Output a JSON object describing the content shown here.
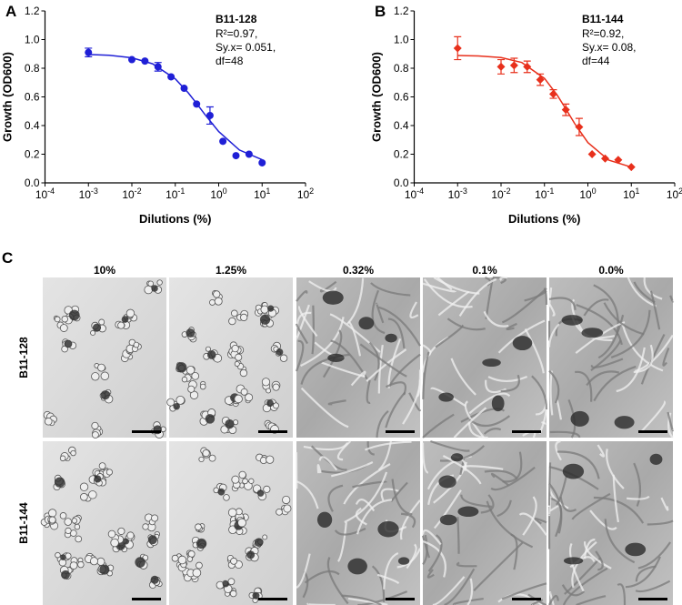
{
  "chart_data": [
    {
      "type": "scatter",
      "panel_label": "A",
      "title": "B11-128",
      "annotation_lines": [
        "R²=0.97,",
        "Sy.x= 0.051,",
        "df=48"
      ],
      "x_label": "Dilutions (%)",
      "y_label": "Growth (OD600)",
      "x_log": true,
      "xlim": [
        0.0001,
        100
      ],
      "xticks": [
        {
          "value": 0.0001,
          "label": "10",
          "exponent": "-4"
        },
        {
          "value": 0.001,
          "label": "10",
          "exponent": "-3"
        },
        {
          "value": 0.01,
          "label": "10",
          "exponent": "-2"
        },
        {
          "value": 0.1,
          "label": "10",
          "exponent": "-1"
        },
        {
          "value": 1,
          "label": "10",
          "exponent": "0"
        },
        {
          "value": 10,
          "label": "10",
          "exponent": "1"
        },
        {
          "value": 100,
          "label": "10",
          "exponent": "2"
        }
      ],
      "ylim": [
        0,
        1.2
      ],
      "yticks": [
        {
          "value": 0,
          "label": "0.0"
        },
        0.2,
        0.4,
        0.6,
        0.8,
        {
          "value": 1,
          "label": "1.0"
        },
        1.2
      ],
      "series": [
        {
          "color": "#1f1fd6",
          "marker": "circle",
          "x": [
            0.001,
            0.01,
            0.02,
            0.04,
            0.08,
            0.16,
            0.31,
            0.63,
            1.25,
            2.5,
            5,
            10
          ],
          "values": [
            0.91,
            0.86,
            0.85,
            0.81,
            0.74,
            0.66,
            0.55,
            0.47,
            0.29,
            0.19,
            0.2,
            0.14
          ],
          "errors": [
            0.03,
            null,
            null,
            0.03,
            null,
            null,
            null,
            0.06,
            null,
            null,
            null,
            null
          ]
        }
      ],
      "fit": {
        "x": [
          0.001,
          0.003,
          0.01,
          0.03,
          0.1,
          0.2,
          0.3,
          0.5,
          1,
          3,
          10
        ],
        "values": [
          0.896,
          0.89,
          0.873,
          0.831,
          0.726,
          0.628,
          0.56,
          0.471,
          0.358,
          0.229,
          0.161
        ]
      }
    },
    {
      "type": "scatter",
      "panel_label": "B",
      "title": "B11-144",
      "annotation_lines": [
        "R²=0.92,",
        "Sy.x= 0.08,",
        "df=44"
      ],
      "x_label": "Dilutions (%)",
      "y_label": "Growth (OD600)",
      "x_log": true,
      "xlim": [
        0.0001,
        100
      ],
      "xticks": [
        {
          "value": 0.0001,
          "label": "10",
          "exponent": "-4"
        },
        {
          "value": 0.001,
          "label": "10",
          "exponent": "-3"
        },
        {
          "value": 0.01,
          "label": "10",
          "exponent": "-2"
        },
        {
          "value": 0.1,
          "label": "10",
          "exponent": "-1"
        },
        {
          "value": 1,
          "label": "10",
          "exponent": "0"
        },
        {
          "value": 10,
          "label": "10",
          "exponent": "1"
        },
        {
          "value": 100,
          "label": "10",
          "exponent": "2"
        }
      ],
      "ylim": [
        0,
        1.2
      ],
      "yticks": [
        {
          "value": 0,
          "label": "0.0"
        },
        0.2,
        0.4,
        0.6,
        0.8,
        {
          "value": 1,
          "label": "1.0"
        },
        1.2
      ],
      "series": [
        {
          "color": "#e8301c",
          "marker": "diamond",
          "x": [
            0.001,
            0.01,
            0.02,
            0.04,
            0.08,
            0.16,
            0.31,
            0.63,
            1.25,
            2.5,
            5,
            10
          ],
          "values": [
            0.94,
            0.81,
            0.82,
            0.81,
            0.72,
            0.62,
            0.51,
            0.39,
            0.2,
            0.17,
            0.16,
            0.11
          ],
          "errors": [
            0.08,
            0.05,
            0.05,
            0.04,
            0.04,
            0.03,
            0.04,
            0.06,
            null,
            null,
            null,
            null
          ]
        }
      ],
      "fit": {
        "x": [
          0.001,
          0.003,
          0.01,
          0.03,
          0.1,
          0.2,
          0.3,
          0.5,
          1,
          3,
          10
        ],
        "values": [
          0.889,
          0.886,
          0.874,
          0.84,
          0.729,
          0.609,
          0.524,
          0.413,
          0.281,
          0.159,
          0.11
        ]
      }
    }
  ],
  "panel_c": {
    "panel_label": "C",
    "columns": [
      "10%",
      "1.25%",
      "0.32%",
      "0.1%",
      "0.0%"
    ],
    "rows": [
      "B11-128",
      "B11-144"
    ]
  }
}
